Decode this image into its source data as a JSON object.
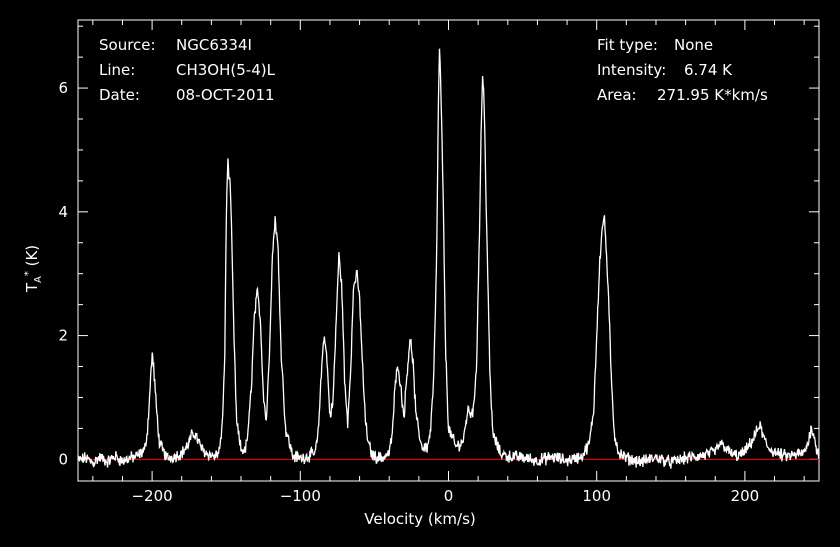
{
  "info": {
    "source_label": "Source:",
    "source_value": "NGC6334I",
    "line_label": "Line:",
    "line_value": "CH3OH(5-4)L",
    "date_label": "Date:",
    "date_value": "08-OCT-2011",
    "fit_label": "Fit type:",
    "fit_value": "None",
    "intensity_label": "Intensity:",
    "intensity_value": "6.74 K",
    "area_label": "Area:",
    "area_value": "271.95 K*km/s"
  },
  "chart_data": {
    "type": "line",
    "title": "",
    "xlabel": "Velocity (km/s)",
    "ylabel": "T_A^* (K)",
    "xlim": [
      -250,
      250
    ],
    "ylim": [
      -0.35,
      7.1
    ],
    "xticks": [
      -200,
      -100,
      0,
      100,
      200
    ],
    "yticks": [
      0,
      2,
      4,
      6
    ],
    "baseline": 0,
    "colors": {
      "spectrum": "#ffffff",
      "baseline": "#ff0000",
      "axes": "#ffffff",
      "background": "#000000"
    },
    "series": [
      {
        "x": [
          -250,
          -245,
          -240,
          -235,
          -230,
          -225,
          -220,
          -215,
          -210,
          -205,
          -203,
          -201,
          -200,
          -199,
          -197,
          -195,
          -190,
          -185,
          -180,
          -176,
          -173,
          -171,
          -169,
          -166,
          -162,
          -158,
          -155,
          -153,
          -151,
          -150,
          -149,
          -147,
          -145,
          -143,
          -140,
          -137,
          -135,
          -133,
          -131,
          -129,
          -127,
          -125,
          -123,
          -121,
          -119,
          -117,
          -115,
          -113,
          -110,
          -105,
          -100,
          -95,
          -90,
          -88,
          -86,
          -84,
          -82,
          -80,
          -78,
          -76,
          -74,
          -72,
          -70,
          -68,
          -66,
          -64,
          -62,
          -60,
          -58,
          -56,
          -54,
          -52,
          -50,
          -45,
          -40,
          -38,
          -36,
          -34,
          -32,
          -30,
          -28,
          -26,
          -24,
          -22,
          -18,
          -14,
          -12,
          -10,
          -8,
          -7,
          -6,
          -4,
          -2,
          0,
          5,
          10,
          13,
          15,
          17,
          19,
          21,
          22,
          23,
          24,
          26,
          28,
          30,
          35,
          40,
          50,
          60,
          70,
          80,
          90,
          95,
          98,
          100,
          102,
          104,
          105,
          106,
          108,
          110,
          112,
          115,
          120,
          130,
          140,
          150,
          160,
          170,
          180,
          183,
          186,
          190,
          195,
          200,
          205,
          208,
          210,
          212,
          215,
          220,
          225,
          230,
          235,
          240,
          243,
          245,
          247,
          250
        ],
        "y": [
          -0.02,
          0.02,
          -0.05,
          0.03,
          -0.04,
          0.05,
          -0.03,
          0.02,
          0.05,
          0.15,
          0.5,
          1.3,
          1.72,
          1.5,
          0.8,
          0.25,
          0.02,
          0.05,
          0.1,
          0.22,
          0.4,
          0.42,
          0.3,
          0.15,
          0.08,
          0.05,
          0.1,
          0.4,
          1.6,
          3.8,
          4.85,
          4.3,
          2.2,
          0.6,
          0.15,
          0.15,
          0.5,
          1.2,
          2.3,
          2.7,
          2.3,
          1.1,
          0.6,
          1.6,
          3.2,
          3.9,
          3.4,
          1.8,
          0.5,
          0.05,
          0.02,
          0.05,
          0.1,
          0.4,
          1.3,
          2.05,
          1.6,
          0.7,
          0.9,
          2.1,
          3.3,
          2.8,
          1.2,
          0.6,
          1.5,
          2.8,
          3.0,
          2.6,
          1.5,
          0.6,
          0.25,
          0.1,
          0.05,
          0.02,
          0.1,
          0.4,
          1.2,
          1.55,
          1.1,
          0.7,
          1.4,
          1.95,
          1.6,
          0.7,
          0.2,
          0.2,
          0.5,
          1.3,
          3.2,
          5.5,
          6.7,
          4.8,
          1.8,
          0.5,
          0.2,
          0.3,
          0.8,
          0.75,
          0.8,
          1.6,
          3.8,
          5.3,
          6.2,
          5.8,
          3.5,
          1.3,
          0.4,
          0.1,
          0.05,
          0.03,
          -0.02,
          0.04,
          -0.02,
          0.05,
          0.25,
          0.8,
          2.0,
          3.2,
          3.8,
          3.92,
          3.6,
          2.6,
          1.2,
          0.4,
          0.1,
          0.02,
          -0.04,
          0.03,
          -0.05,
          0.02,
          0.05,
          0.12,
          0.25,
          0.22,
          0.1,
          0.05,
          0.12,
          0.3,
          0.45,
          0.55,
          0.4,
          0.2,
          0.12,
          0.06,
          0.05,
          0.08,
          0.1,
          0.3,
          0.55,
          0.3,
          0.05
        ]
      }
    ]
  }
}
